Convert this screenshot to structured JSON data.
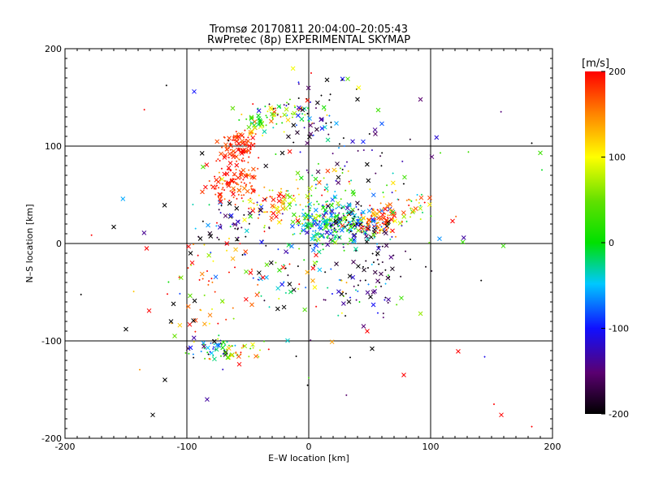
{
  "chart_data": {
    "type": "scatter",
    "title": "Tromsø 20170811 20:04:00–20:05:43",
    "subtitle": "RwPretec (8p) EXPERIMENTAL SKYMAP",
    "xlabel": "E–W location [km]",
    "ylabel": "N–S location [km]",
    "xlim": [
      -200,
      200
    ],
    "ylim": [
      -200,
      200
    ],
    "xticks": [
      "-200",
      "-100",
      "0",
      "100",
      "200"
    ],
    "yticks": [
      "-200",
      "-100",
      "0",
      "100",
      "200"
    ],
    "grid": true,
    "colorbar": {
      "label": "[m/s]",
      "range": [
        -200,
        200
      ],
      "ticks": [
        "-200",
        "-100",
        "0",
        "100",
        "200"
      ],
      "colormap": "black-purple-blue-cyan-green-yellow-red"
    },
    "clusters": [
      {
        "cx": -58,
        "cy": 98,
        "sx": 8,
        "sy": 10,
        "n": 110,
        "v": 185,
        "vs": 15
      },
      {
        "cx": -62,
        "cy": 60,
        "sx": 10,
        "sy": 10,
        "n": 110,
        "v": 180,
        "vs": 20
      },
      {
        "cx": -40,
        "cy": 125,
        "sx": 10,
        "sy": 8,
        "n": 40,
        "v": 60,
        "vs": 60
      },
      {
        "cx": -15,
        "cy": 133,
        "sx": 14,
        "sy": 6,
        "n": 50,
        "v": 40,
        "vs": 60
      },
      {
        "cx": 0,
        "cy": 145,
        "sx": 20,
        "sy": 15,
        "n": 35,
        "v": -150,
        "vs": 60
      },
      {
        "cx": 15,
        "cy": 20,
        "sx": 14,
        "sy": 12,
        "n": 240,
        "v": -20,
        "vs": 60
      },
      {
        "cx": 42,
        "cy": 18,
        "sx": 13,
        "sy": 10,
        "n": 110,
        "v": -120,
        "vs": 80
      },
      {
        "cx": 58,
        "cy": 25,
        "sx": 10,
        "sy": 8,
        "n": 80,
        "v": 170,
        "vs": 40
      },
      {
        "cx": 20,
        "cy": 55,
        "sx": 20,
        "sy": 12,
        "n": 60,
        "v": 20,
        "vs": 120
      },
      {
        "cx": -28,
        "cy": 40,
        "sx": 14,
        "sy": 12,
        "n": 70,
        "v": 130,
        "vs": 60
      },
      {
        "cx": -60,
        "cy": 20,
        "sx": 14,
        "sy": 12,
        "n": 50,
        "v": -150,
        "vs": 60
      },
      {
        "cx": -78,
        "cy": -108,
        "sx": 10,
        "sy": 5,
        "n": 50,
        "v": -60,
        "vs": 100
      },
      {
        "cx": -55,
        "cy": -110,
        "sx": 12,
        "sy": 5,
        "n": 30,
        "v": 80,
        "vs": 60
      },
      {
        "cx": 40,
        "cy": -50,
        "sx": 14,
        "sy": 14,
        "n": 40,
        "v": -120,
        "vs": 80
      },
      {
        "cx": 20,
        "cy": 100,
        "sx": 25,
        "sy": 15,
        "n": 40,
        "v": -150,
        "vs": 60
      },
      {
        "cx": 80,
        "cy": 40,
        "sx": 12,
        "sy": 12,
        "n": 40,
        "v": 100,
        "vs": 80
      },
      {
        "cx": -80,
        "cy": -40,
        "sx": 18,
        "sy": 25,
        "n": 50,
        "v": 150,
        "vs": 70
      },
      {
        "cx": -20,
        "cy": -30,
        "sx": 25,
        "sy": 25,
        "n": 60,
        "v": 0,
        "vs": 180
      },
      {
        "cx": 60,
        "cy": -20,
        "sx": 20,
        "sy": 10,
        "n": 30,
        "v": -190,
        "vs": 20
      },
      {
        "cx": 0,
        "cy": 0,
        "sx": 90,
        "sy": 90,
        "n": 80,
        "v": 0,
        "vs": 200
      }
    ],
    "points": [
      {
        "x": -94,
        "y": 156,
        "v": -100,
        "m": "x"
      },
      {
        "x": 15,
        "y": 168,
        "v": -200,
        "m": "x"
      },
      {
        "x": 32,
        "y": 169,
        "v": 40,
        "m": "x"
      },
      {
        "x": 41,
        "y": 160,
        "v": 100,
        "m": "x"
      },
      {
        "x": 57,
        "y": 137,
        "v": 30,
        "m": "x"
      },
      {
        "x": 40,
        "y": 148,
        "v": -200,
        "m": "x"
      },
      {
        "x": 60,
        "y": 123,
        "v": -80,
        "m": "x"
      },
      {
        "x": 101,
        "y": 89,
        "v": -150,
        "m": "x"
      },
      {
        "x": 190,
        "y": 93,
        "v": 30,
        "m": "x"
      },
      {
        "x": 183,
        "y": 103,
        "v": -200,
        "m": "+"
      },
      {
        "x": 131,
        "y": 94,
        "v": 30,
        "m": "+"
      },
      {
        "x": 108,
        "y": 93,
        "v": 30,
        "m": "+"
      },
      {
        "x": 118,
        "y": 23,
        "v": 200,
        "m": "x"
      },
      {
        "x": -160,
        "y": 17,
        "v": -200,
        "m": "x"
      },
      {
        "x": -133,
        "y": -5,
        "v": 200,
        "m": "x"
      },
      {
        "x": -131,
        "y": -69,
        "v": 200,
        "m": "x"
      },
      {
        "x": -150,
        "y": -88,
        "v": -200,
        "m": "x"
      },
      {
        "x": -113,
        "y": -80,
        "v": -200,
        "m": "x"
      },
      {
        "x": -111,
        "y": -62,
        "v": -200,
        "m": "x"
      },
      {
        "x": -110,
        "y": -95,
        "v": 50,
        "m": "x"
      },
      {
        "x": -118,
        "y": -140,
        "v": -200,
        "m": "x"
      },
      {
        "x": -128,
        "y": -176,
        "v": -200,
        "m": "x"
      },
      {
        "x": -97,
        "y": -107,
        "v": -100,
        "m": "x"
      },
      {
        "x": -57,
        "y": -124,
        "v": 200,
        "m": "x"
      },
      {
        "x": 0,
        "y": -138,
        "v": 30,
        "m": "+"
      },
      {
        "x": 34,
        "y": -117,
        "v": -200,
        "m": "+"
      },
      {
        "x": 78,
        "y": -135,
        "v": 200,
        "m": "x"
      },
      {
        "x": 158,
        "y": -176,
        "v": 200,
        "m": "x"
      },
      {
        "x": 152,
        "y": -165,
        "v": 200,
        "m": "+"
      },
      {
        "x": 183,
        "y": -188,
        "v": 200,
        "m": "+"
      },
      {
        "x": 76,
        "y": -56,
        "v": 30,
        "m": "x"
      },
      {
        "x": 45,
        "y": -85,
        "v": -150,
        "m": "x"
      },
      {
        "x": 48,
        "y": -90,
        "v": 200,
        "m": "x"
      },
      {
        "x": 52,
        "y": -108,
        "v": -200,
        "m": "x"
      },
      {
        "x": 2,
        "y": 175,
        "v": 200,
        "m": "+"
      },
      {
        "x": -89,
        "y": 5,
        "v": -200,
        "m": "x"
      },
      {
        "x": -97,
        "y": -10,
        "v": -200,
        "m": "x"
      }
    ]
  }
}
